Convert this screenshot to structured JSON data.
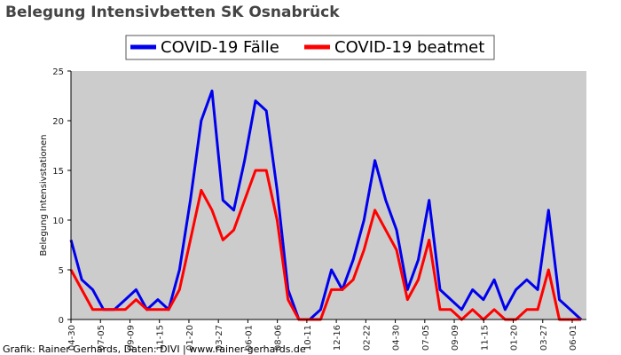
{
  "chart_data": {
    "type": "line",
    "title": "Belegung Intensivbetten SK Osnabrück",
    "ylabel": "Belegung Intensivstationen",
    "xlabel": "",
    "ylim": [
      0,
      25
    ],
    "yticks": [
      "0",
      "5",
      "10",
      "15",
      "20",
      "25"
    ],
    "grid": false,
    "legend_position": "top-center",
    "x_tick_labels": [
      "04-30",
      "07-05",
      "09-09",
      "11-15",
      "01-20",
      "03-27",
      "06-01",
      "08-06",
      "10-11",
      "12-16",
      "02-22",
      "04-30",
      "07-05",
      "09-09",
      "11-15",
      "01-20",
      "03-27",
      "06-01"
    ],
    "x": [
      "2020-04-30",
      "2020-05-25",
      "2020-06-19",
      "2020-07-14",
      "2020-08-08",
      "2020-09-02",
      "2020-09-27",
      "2020-10-22",
      "2020-11-16",
      "2020-12-11",
      "2021-01-05",
      "2021-01-30",
      "2021-02-24",
      "2021-03-21",
      "2021-04-15",
      "2021-05-10",
      "2021-06-04",
      "2021-06-29",
      "2021-07-24",
      "2021-08-18",
      "2021-09-12",
      "2021-10-07",
      "2021-11-01",
      "2021-11-26",
      "2021-12-21",
      "2022-01-15",
      "2022-02-09",
      "2022-03-06",
      "2022-03-31",
      "2022-04-25",
      "2022-05-20",
      "2022-06-14",
      "2022-07-09",
      "2022-08-03",
      "2022-08-28",
      "2022-09-22",
      "2022-10-17",
      "2022-11-11",
      "2022-12-06",
      "2022-12-31",
      "2023-01-25",
      "2023-02-19",
      "2023-03-16",
      "2023-04-10",
      "2023-05-05",
      "2023-05-30",
      "2023-06-24",
      "2023-07-19"
    ],
    "series": [
      {
        "name": "COVID-19 Fälle",
        "color": "#0000ee",
        "values": [
          8,
          4,
          3,
          1,
          1,
          2,
          3,
          1,
          2,
          1,
          5,
          12,
          20,
          23,
          12,
          11,
          16,
          22,
          21,
          13,
          3,
          0,
          0,
          1,
          5,
          3,
          6,
          10,
          16,
          12,
          9,
          3,
          6,
          12,
          3,
          2,
          1,
          3,
          2,
          4,
          1,
          3,
          4,
          3,
          11,
          2,
          1,
          0
        ]
      },
      {
        "name": "COVID-19 beatmet",
        "color": "#ff0000",
        "values": [
          5,
          3,
          1,
          1,
          1,
          1,
          2,
          1,
          1,
          1,
          3,
          8,
          13,
          11,
          8,
          9,
          12,
          15,
          15,
          10,
          2,
          0,
          0,
          0,
          3,
          3,
          4,
          7,
          11,
          9,
          7,
          2,
          4,
          8,
          1,
          1,
          0,
          1,
          0,
          1,
          0,
          0,
          1,
          1,
          5,
          0,
          0,
          0
        ]
      }
    ]
  },
  "credit": "Grafik: Rainer Gerhards, Daten: DIVI | www.rainer-gerhards.de",
  "colors": {
    "plot_background": "#cccccc",
    "title": "#444444"
  }
}
